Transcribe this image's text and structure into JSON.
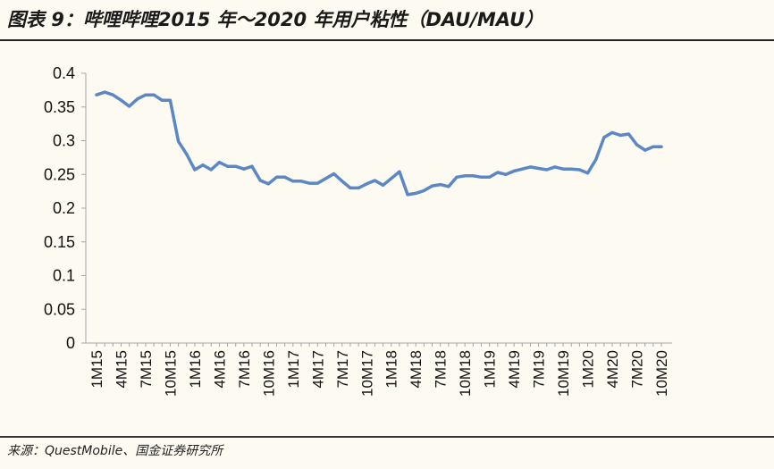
{
  "header": {
    "title": "图表 9：哔哩哔哩2015 年～2020 年用户粘性（DAU/MAU）"
  },
  "footer": {
    "source": "来源：QuestMobile、国金证券研究所"
  },
  "colors": {
    "line": "#5b87c5",
    "background": "#fdfaf1",
    "axis": "#a6a6a6"
  },
  "chart_data": {
    "type": "line",
    "title": "",
    "xlabel": "",
    "ylabel": "",
    "ylim": [
      0,
      0.4
    ],
    "yticks": [
      0,
      0.05,
      0.1,
      0.15,
      0.2,
      0.25,
      0.3,
      0.35,
      0.4
    ],
    "ytick_labels": [
      "0",
      "0.05",
      "0.1",
      "0.15",
      "0.2",
      "0.25",
      "0.3",
      "0.35",
      "0.4"
    ],
    "grid": false,
    "legend": "none",
    "xtick_labels": [
      "1M15",
      "4M15",
      "7M15",
      "10M15",
      "1M16",
      "4M16",
      "7M16",
      "10M16",
      "1M17",
      "4M17",
      "7M17",
      "10M17",
      "1M18",
      "4M18",
      "7M18",
      "10M18",
      "1M19",
      "4M19",
      "7M19",
      "10M19",
      "1M20",
      "4M20",
      "7M20",
      "10M20"
    ],
    "x": [
      "1M15",
      "2M15",
      "3M15",
      "4M15",
      "5M15",
      "6M15",
      "7M15",
      "8M15",
      "9M15",
      "10M15",
      "11M15",
      "12M15",
      "1M16",
      "2M16",
      "3M16",
      "4M16",
      "5M16",
      "6M16",
      "7M16",
      "8M16",
      "9M16",
      "10M16",
      "11M16",
      "12M16",
      "1M17",
      "2M17",
      "3M17",
      "4M17",
      "5M17",
      "6M17",
      "7M17",
      "8M17",
      "9M17",
      "10M17",
      "11M17",
      "12M17",
      "1M18",
      "2M18",
      "3M18",
      "4M18",
      "5M18",
      "6M18",
      "7M18",
      "8M18",
      "9M18",
      "10M18",
      "11M18",
      "12M18",
      "1M19",
      "2M19",
      "3M19",
      "4M19",
      "5M19",
      "6M19",
      "7M19",
      "8M19",
      "9M19",
      "10M19",
      "11M19",
      "12M19",
      "1M20",
      "2M20",
      "3M20",
      "4M20",
      "5M20",
      "6M20",
      "7M20",
      "8M20",
      "9M20",
      "10M20"
    ],
    "series": [
      {
        "values": [
          0.368,
          0.372,
          0.368,
          0.36,
          0.351,
          0.362,
          0.368,
          0.368,
          0.36,
          0.36,
          0.299,
          0.28,
          0.257,
          0.264,
          0.257,
          0.268,
          0.262,
          0.262,
          0.258,
          0.262,
          0.241,
          0.236,
          0.246,
          0.246,
          0.24,
          0.24,
          0.237,
          0.237,
          0.244,
          0.251,
          0.24,
          0.23,
          0.23,
          0.236,
          0.241,
          0.234,
          0.244,
          0.254,
          0.22,
          0.222,
          0.226,
          0.233,
          0.235,
          0.232,
          0.246,
          0.248,
          0.248,
          0.246,
          0.246,
          0.253,
          0.25,
          0.255,
          0.258,
          0.261,
          0.259,
          0.257,
          0.261,
          0.258,
          0.258,
          0.257,
          0.252,
          0.272,
          0.305,
          0.312,
          0.308,
          0.31,
          0.294,
          0.286,
          0.291,
          0.291
        ]
      }
    ]
  }
}
